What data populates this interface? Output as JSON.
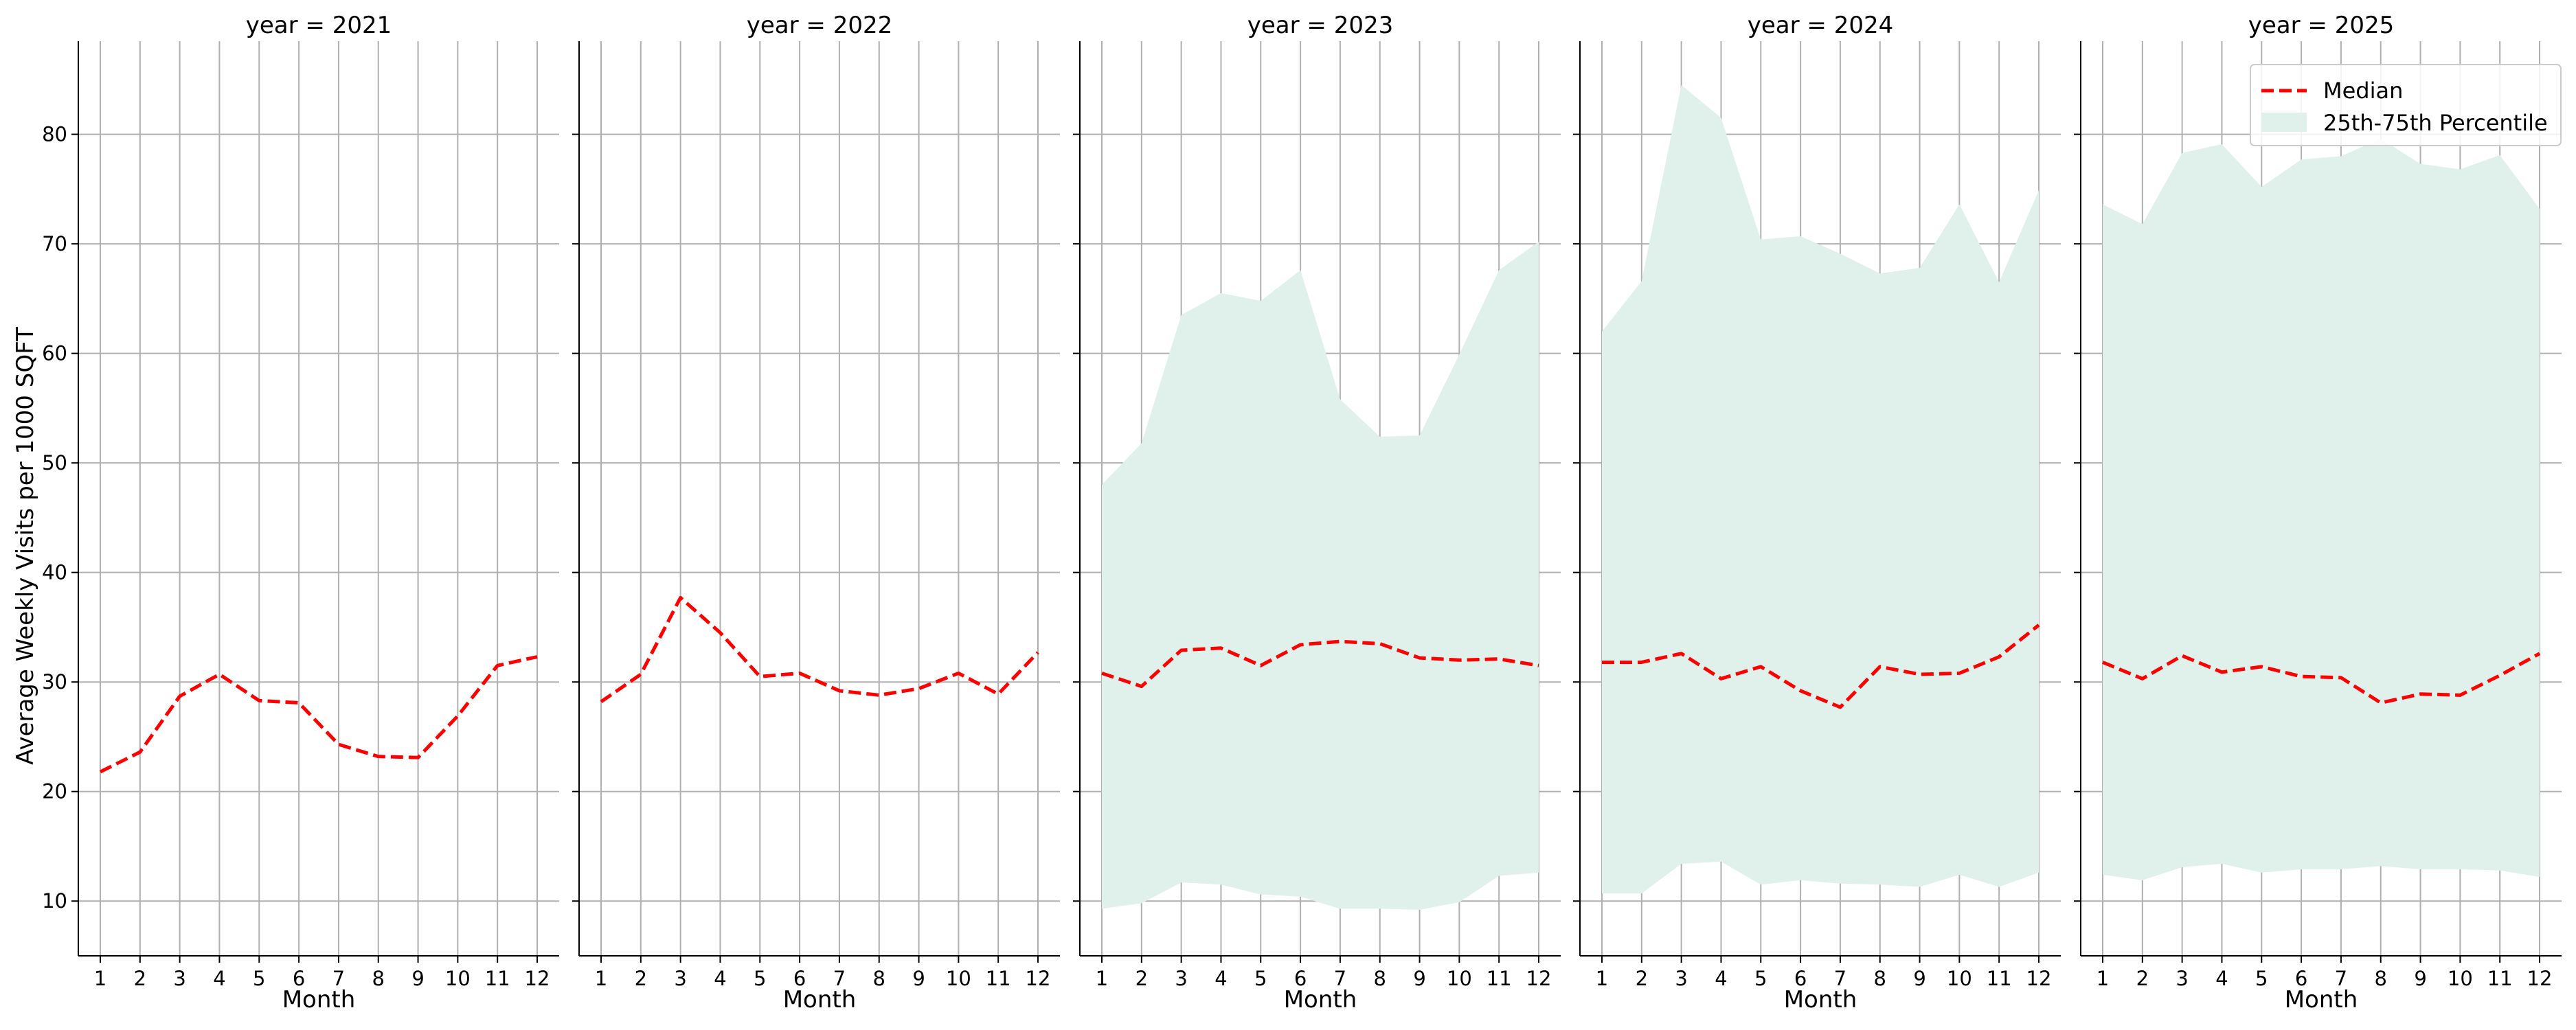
{
  "chart_data": {
    "type": "line",
    "ylabel": "Average Weekly Visits per 1000 SQFT",
    "ylim": [
      5,
      88.5
    ],
    "yticks": [
      10,
      20,
      30,
      40,
      50,
      60,
      70,
      80
    ],
    "xticks": [
      1,
      2,
      3,
      4,
      5,
      6,
      7,
      8,
      9,
      10,
      11,
      12
    ],
    "grid": true,
    "legend": {
      "placement": "top-right",
      "entries": [
        {
          "name": "Median",
          "color": "#ff0000",
          "style": "dashed-line"
        },
        {
          "name": "25th-75th Percentile",
          "color": "#dff1ea",
          "style": "filled-area"
        }
      ]
    },
    "panels": [
      {
        "title": "year = 2021",
        "xlabel": "Month",
        "x": [
          1,
          2,
          3,
          4,
          5,
          6,
          7,
          8,
          9,
          10,
          11,
          12
        ],
        "median": [
          21.8,
          23.6,
          28.7,
          30.7,
          28.3,
          28.1,
          24.3,
          23.2,
          23.1,
          26.9,
          31.5,
          32.3
        ],
        "p25": null,
        "p75": null
      },
      {
        "title": "year = 2022",
        "xlabel": "Month",
        "x": [
          1,
          2,
          3,
          4,
          5,
          6,
          7,
          8,
          9,
          10,
          11,
          12
        ],
        "median": [
          28.2,
          30.7,
          37.7,
          34.5,
          30.5,
          30.8,
          29.2,
          28.8,
          29.4,
          30.8,
          28.9,
          32.7
        ],
        "p25": null,
        "p75": null
      },
      {
        "title": "year = 2023",
        "xlabel": "Month",
        "x": [
          1,
          2,
          3,
          4,
          5,
          6,
          7,
          8,
          9,
          10,
          11,
          12
        ],
        "median": [
          30.8,
          29.6,
          32.9,
          33.1,
          31.5,
          33.4,
          33.7,
          33.5,
          32.2,
          32.0,
          32.1,
          31.5
        ],
        "p25": [
          9.3,
          9.8,
          11.7,
          11.5,
          10.6,
          10.4,
          9.3,
          9.3,
          9.2,
          9.9,
          12.3,
          12.6
        ],
        "p75": [
          48.0,
          51.8,
          63.5,
          65.5,
          64.8,
          67.6,
          55.8,
          52.4,
          52.5,
          59.9,
          67.6,
          70.2
        ]
      },
      {
        "title": "year = 2024",
        "xlabel": "Month",
        "x": [
          1,
          2,
          3,
          4,
          5,
          6,
          7,
          8,
          9,
          10,
          11,
          12
        ],
        "median": [
          31.8,
          31.8,
          32.6,
          30.3,
          31.4,
          29.2,
          27.7,
          31.4,
          30.7,
          30.8,
          32.3,
          35.2
        ],
        "p25": [
          10.7,
          10.7,
          13.4,
          13.6,
          11.5,
          11.9,
          11.6,
          11.5,
          11.3,
          12.4,
          11.3,
          12.6
        ],
        "p75": [
          62.0,
          66.6,
          84.5,
          81.5,
          70.4,
          70.7,
          69.1,
          67.3,
          67.8,
          73.6,
          66.5,
          74.9
        ]
      },
      {
        "title": "year = 2025",
        "xlabel": "Month",
        "x": [
          1,
          2,
          3,
          4,
          5,
          6,
          7,
          8,
          9,
          10,
          11,
          12
        ],
        "median": [
          31.8,
          30.3,
          32.4,
          30.9,
          31.4,
          30.5,
          30.4,
          28.1,
          28.9,
          28.8,
          30.6,
          32.6
        ],
        "p25": [
          12.4,
          11.9,
          13.1,
          13.4,
          12.6,
          12.9,
          12.9,
          13.2,
          12.9,
          12.9,
          12.8,
          12.2
        ],
        "p75": [
          73.6,
          71.8,
          78.3,
          79.1,
          75.2,
          77.7,
          78.0,
          79.6,
          77.3,
          76.8,
          78.1,
          73.2
        ]
      }
    ]
  }
}
